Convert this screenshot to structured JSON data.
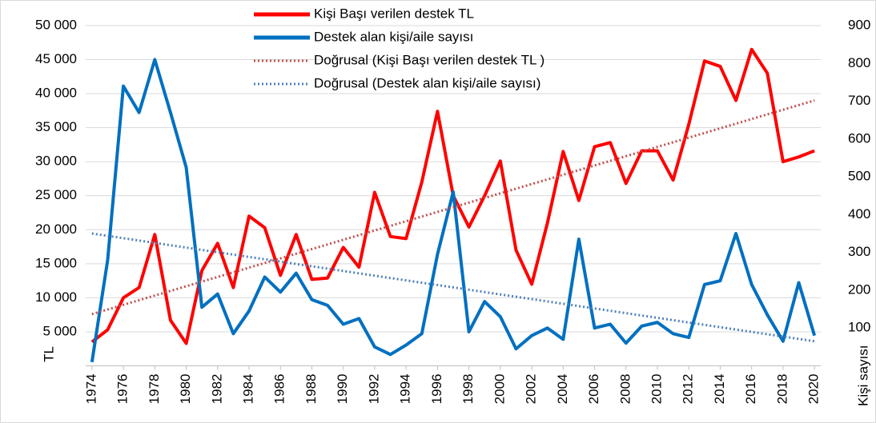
{
  "chart_data": {
    "type": "line",
    "x": [
      1974,
      1975,
      1976,
      1977,
      1978,
      1979,
      1980,
      1981,
      1982,
      1983,
      1984,
      1985,
      1986,
      1987,
      1988,
      1989,
      1990,
      1991,
      1992,
      1993,
      1994,
      1995,
      1996,
      1997,
      1998,
      1999,
      2000,
      2001,
      2002,
      2003,
      2004,
      2005,
      2006,
      2007,
      2008,
      2009,
      2010,
      2011,
      2012,
      2013,
      2014,
      2015,
      2016,
      2017,
      2018,
      2019,
      2020
    ],
    "xlim": [
      1973.6,
      2020.4
    ],
    "xticks": [
      1974,
      1976,
      1978,
      1980,
      1982,
      1984,
      1986,
      1988,
      1990,
      1992,
      1994,
      1996,
      1998,
      2000,
      2002,
      2004,
      2006,
      2008,
      2010,
      2012,
      2014,
      2016,
      2018,
      2020
    ],
    "ylim": [
      0,
      50000
    ],
    "yticks": [
      {
        "value": 5000,
        "label": "5 000"
      },
      {
        "value": 10000,
        "label": "10 000"
      },
      {
        "value": 15000,
        "label": "15 000"
      },
      {
        "value": 20000,
        "label": "20 000"
      },
      {
        "value": 25000,
        "label": "25 000"
      },
      {
        "value": 30000,
        "label": "30 000"
      },
      {
        "value": 35000,
        "label": "35 000"
      },
      {
        "value": 40000,
        "label": "40 000"
      },
      {
        "value": 45000,
        "label": "45 000"
      },
      {
        "value": 50000,
        "label": "50 000"
      }
    ],
    "y2lim": [
      0,
      900
    ],
    "y2ticks": [
      100,
      200,
      300,
      400,
      500,
      600,
      700,
      800,
      900
    ],
    "y_label": "TL",
    "y2_label": "Kişi sayısı",
    "grid": true,
    "series": [
      {
        "name": "Kişi Başı verilen destek TL",
        "color": "#ff0000",
        "style": "solid",
        "values": [
          3500,
          5300,
          10000,
          11500,
          19300,
          6700,
          3300,
          14000,
          18000,
          11500,
          22000,
          20300,
          13300,
          19300,
          12700,
          12900,
          17400,
          14500,
          25500,
          19000,
          18700,
          27000,
          37400,
          25000,
          20400,
          25000,
          30100,
          17000,
          12000,
          21000,
          31500,
          24300,
          32200,
          32800,
          26800,
          31600,
          31600,
          27300,
          35500,
          44800,
          44000,
          39000,
          46500,
          43000,
          30000,
          30700,
          31600
        ]
      },
      {
        "name": "Destek alan kişi/aile sayısı",
        "color": "#0070c0",
        "style": "solid",
        "axis": "y2",
        "values": [
          10,
          280,
          740,
          670,
          810,
          670,
          525,
          155,
          190,
          85,
          145,
          235,
          195,
          245,
          175,
          160,
          110,
          125,
          50,
          30,
          55,
          85,
          295,
          460,
          90,
          170,
          130,
          45,
          80,
          100,
          70,
          335,
          100,
          110,
          60,
          105,
          115,
          85,
          75,
          215,
          225,
          350,
          215,
          135,
          65,
          220,
          80
        ]
      },
      {
        "name": "Doğrusal (Kişi Başı verilen destek TL )",
        "color": "#c0504d",
        "style": "dotted",
        "x": [
          1974,
          2020
        ],
        "values": [
          7600,
          39000
        ]
      },
      {
        "name": "Doğrusal (Destek alan kişi/aile sayısı)",
        "color": "#4f81bd",
        "style": "dotted",
        "axis": "y2",
        "x": [
          1974,
          2020
        ],
        "values": [
          350,
          65
        ]
      }
    ]
  }
}
